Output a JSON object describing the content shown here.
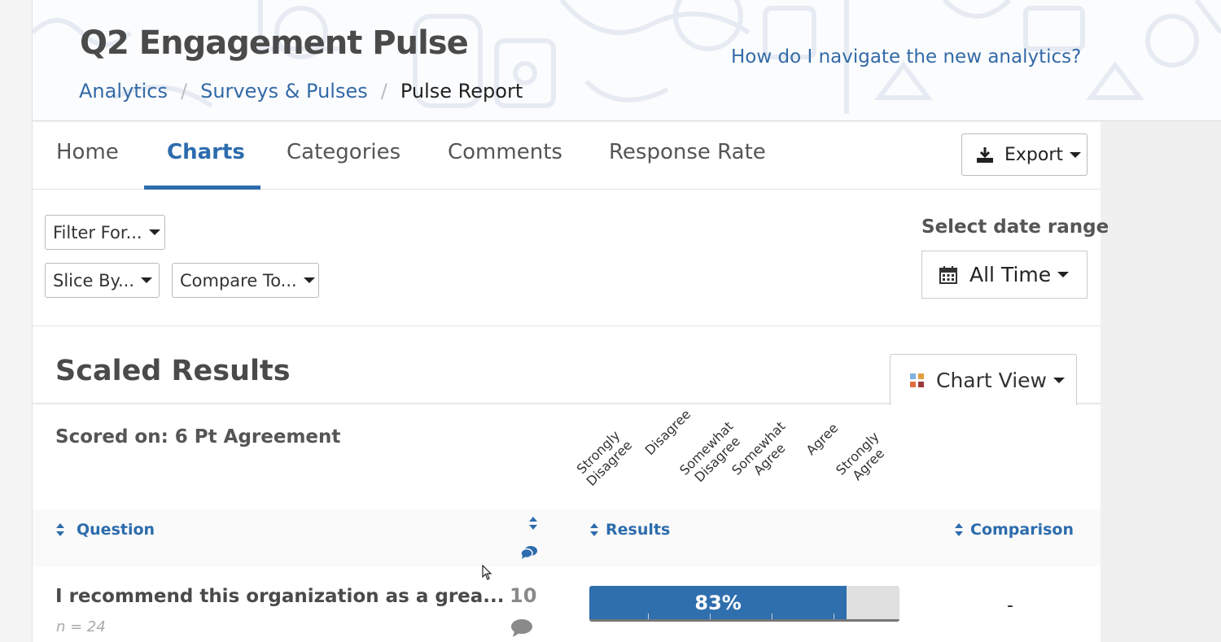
{
  "header": {
    "title": "Q2 Engagement Pulse",
    "breadcrumb": [
      "Analytics",
      "Surveys & Pulses",
      "Pulse Report"
    ],
    "help_link": "How do I navigate the new analytics?"
  },
  "tabs": [
    "Home",
    "Charts",
    "Categories",
    "Comments",
    "Response Rate"
  ],
  "active_tab": "Charts",
  "export_label": "Export",
  "filters": {
    "filter_for": "Filter For...",
    "slice_by": "Slice By...",
    "compare_to": "Compare To...",
    "date_range_label": "Select date range",
    "date_range_value": "All Time"
  },
  "section": {
    "title": "Scaled Results",
    "view_label": "Chart View",
    "scored_on": "Scored on: 6 Pt Agreement"
  },
  "scale": [
    [
      "Strongly",
      "Disagree"
    ],
    [
      "Disagree"
    ],
    [
      "Somewhat",
      "Disagree"
    ],
    [
      "Somewhat",
      "Agree"
    ],
    [
      "Agree"
    ],
    [
      "Strongly",
      "Agree"
    ]
  ],
  "columns": {
    "question": "Question",
    "results": "Results",
    "comparison": "Comparison"
  },
  "rows": [
    {
      "question": "I recommend this organization as a grea...",
      "n": "n = 24",
      "comment_count": "10",
      "result_percent": 83,
      "result_label": "83%",
      "comparison": "-"
    }
  ],
  "colors": {
    "accent": "#2d6cad",
    "bar": "#2f6fae",
    "text": "#4a4a4a"
  }
}
